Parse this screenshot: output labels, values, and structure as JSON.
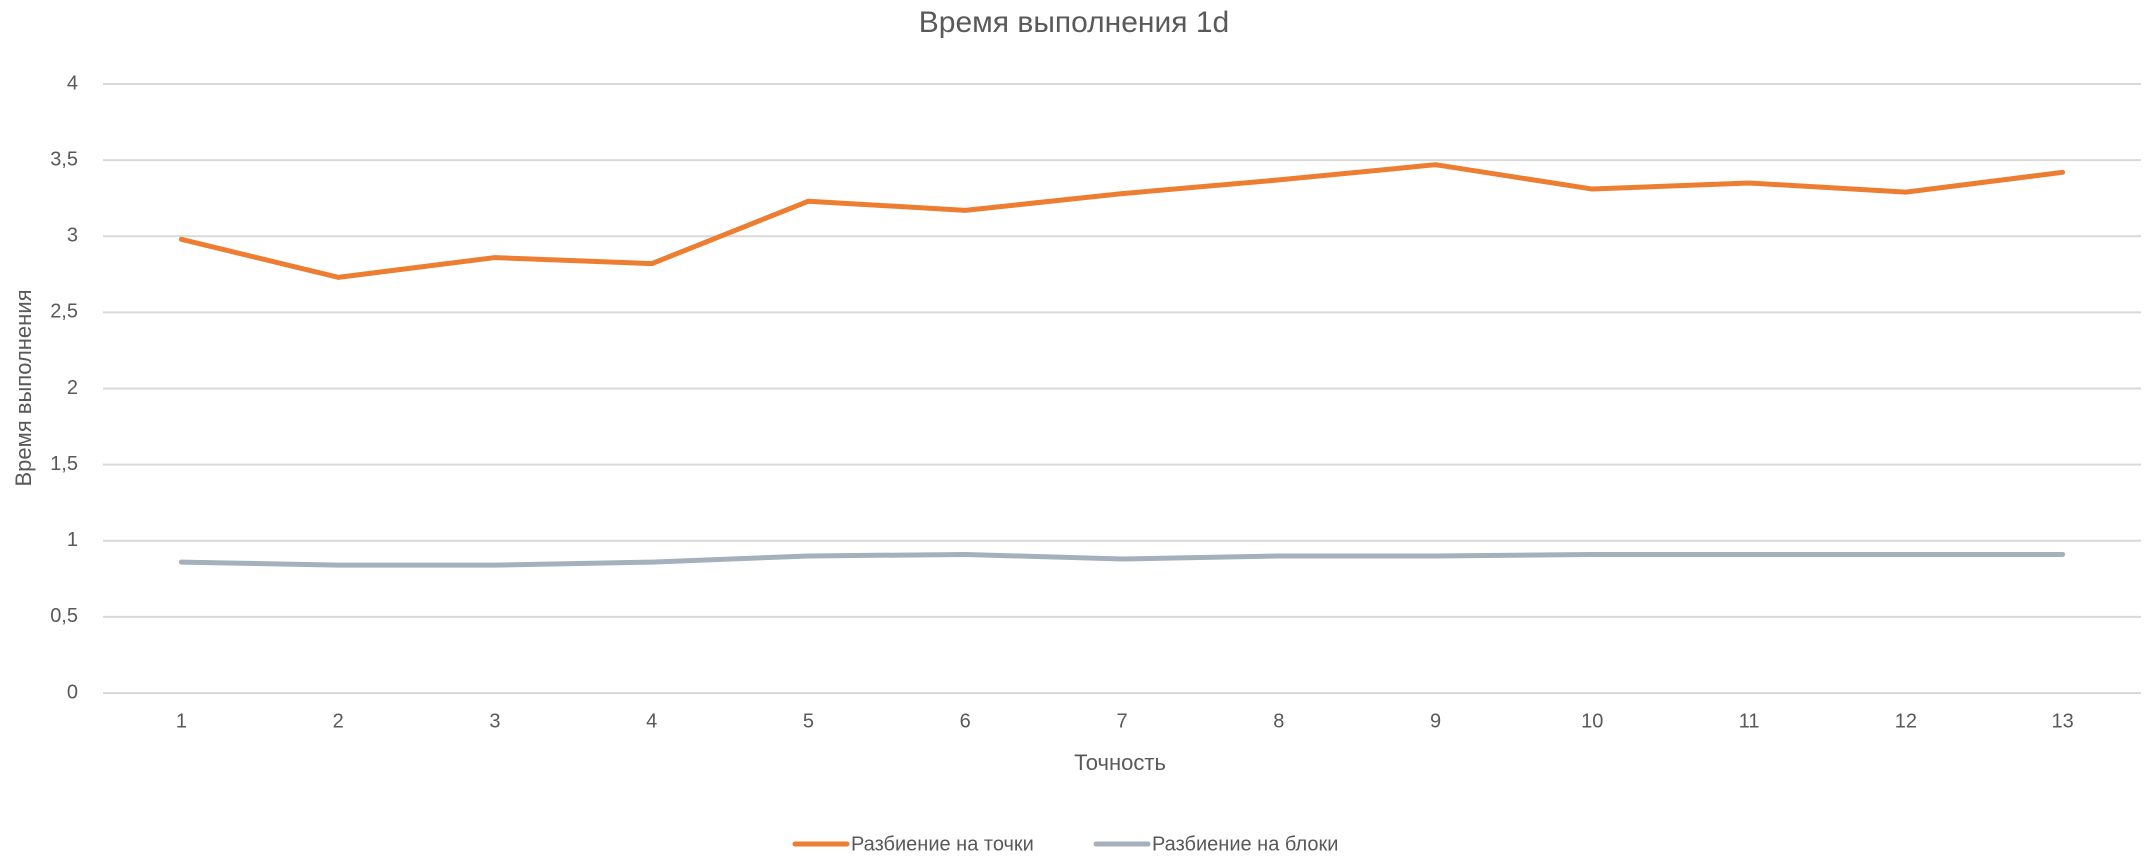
{
  "chart_data": {
    "type": "line",
    "title": "Время выполнения 1d",
    "x_label": "Точность",
    "y_label": "Время выполнения",
    "categories": [
      "1",
      "2",
      "3",
      "4",
      "5",
      "6",
      "7",
      "8",
      "9",
      "10",
      "11",
      "12",
      "13"
    ],
    "series": [
      {
        "name": "Разбиение на точки",
        "color": "#ed7d31",
        "values": [
          2.98,
          2.73,
          2.86,
          2.82,
          3.23,
          3.17,
          3.28,
          3.37,
          3.47,
          3.31,
          3.35,
          3.29,
          3.42
        ]
      },
      {
        "name": "Разбиение на блоки",
        "color": "#a5b0bd",
        "values": [
          0.86,
          0.84,
          0.84,
          0.86,
          0.9,
          0.91,
          0.88,
          0.9,
          0.9,
          0.91,
          0.91,
          0.91,
          0.91
        ]
      }
    ],
    "ylim": [
      0,
      4
    ],
    "yticks": [
      0,
      {
        "value": 0.5,
        "label": "0,5"
      },
      1,
      {
        "value": 1.5,
        "label": "1,5"
      },
      2,
      {
        "value": 2.5,
        "label": "2,5"
      },
      3,
      {
        "value": 3.5,
        "label": "3,5"
      },
      4
    ],
    "grid": true,
    "legend": "bottom"
  }
}
